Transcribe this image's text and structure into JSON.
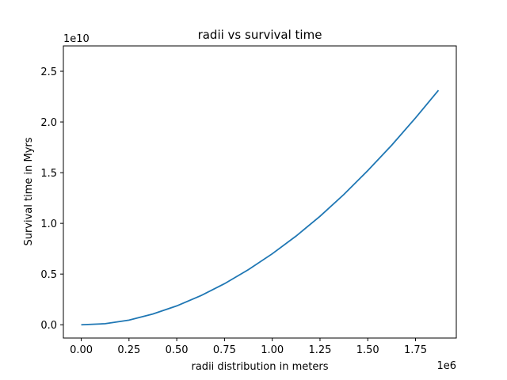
{
  "chart_data": {
    "type": "line",
    "title": "radii vs survival time",
    "xlabel": "radii distribution in meters",
    "ylabel": "Survival time in Myrs",
    "x_offset_label": "1e6",
    "y_offset_label": "1e10",
    "xlim": [
      -0.0935,
      1.9635
    ],
    "ylim": [
      -1310000000.0,
      27500000000.0
    ],
    "xticks": [
      0.0,
      0.25,
      0.5,
      0.75,
      1.0,
      1.25,
      1.5,
      1.75
    ],
    "xtick_labels": [
      "0.00",
      "0.25",
      "0.50",
      "0.75",
      "1.00",
      "1.25",
      "1.50",
      "1.75"
    ],
    "yticks": [
      0.0,
      0.5,
      1.0,
      1.5,
      2.0,
      2.5
    ],
    "ytick_labels": [
      "0.0",
      "0.5",
      "1.0",
      "1.5",
      "2.0",
      "2.5"
    ],
    "grid": false,
    "color": "#1f77b4",
    "series": [
      {
        "x": [
          0.0,
          0.125,
          0.25,
          0.375,
          0.5,
          0.625,
          0.75,
          0.875,
          1.0,
          1.125,
          1.25,
          1.375,
          1.5,
          1.625,
          1.75,
          1.87
        ],
        "y": [
          0.0,
          0.105,
          0.456,
          1.06,
          1.86,
          2.86,
          4.05,
          5.43,
          7.0,
          8.75,
          10.7,
          12.85,
          15.2,
          17.7,
          20.4,
          23.12
        ]
      }
    ]
  }
}
